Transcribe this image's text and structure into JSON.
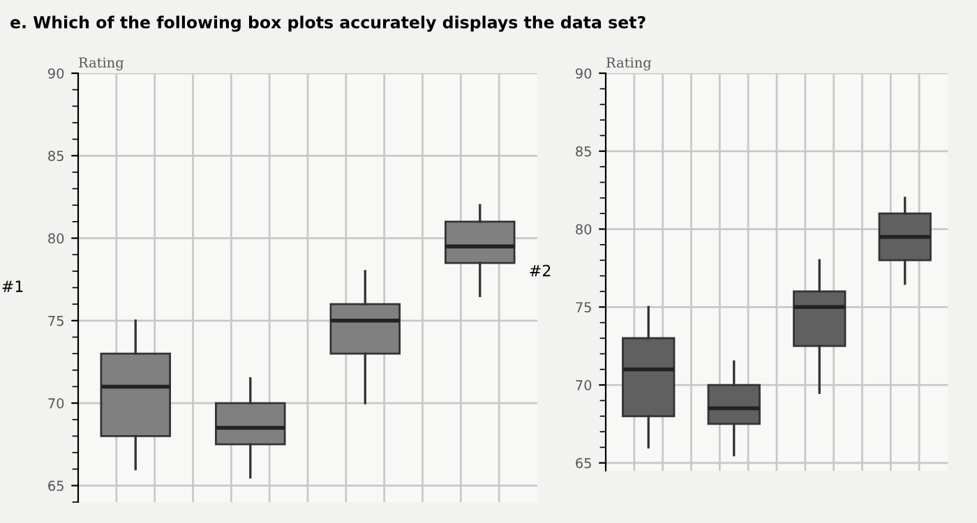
{
  "chart_data": [
    {
      "type": "box",
      "title": "Rating",
      "ylabel": "#1",
      "annotations": [
        "e. Which of the following box plots accurately displays the data set?"
      ],
      "categories": [
        null,
        null,
        null,
        null
      ],
      "color": "#808080",
      "ylim": [
        64,
        90
      ],
      "yticks": [
        65,
        70,
        75,
        80,
        85,
        90
      ],
      "grid": true,
      "tick_labels": "y",
      "boxes": [
        {
          "low": 66,
          "q1": 68,
          "median": 71,
          "q3": 73,
          "high": 75
        },
        {
          "low": 65.5,
          "q1": 67.5,
          "median": 68.5,
          "q3": 70,
          "high": 71.5
        },
        {
          "low": 70,
          "q1": 73,
          "median": 75,
          "q3": 76,
          "high": 78
        },
        {
          "low": 76.5,
          "q1": 78.5,
          "median": 79.5,
          "q3": 81,
          "high": 82
        }
      ]
    },
    {
      "type": "box",
      "title": "Rating",
      "ylabel": "#2",
      "categories": [
        null,
        null,
        null,
        null
      ],
      "color": "#606060",
      "ylim": [
        64.5,
        90
      ],
      "yticks": [
        65,
        70,
        75,
        80,
        85,
        90
      ],
      "grid": true,
      "tick_labels": "y",
      "boxes": [
        {
          "low": 66,
          "q1": 68,
          "median": 71,
          "q3": 73,
          "high": 75
        },
        {
          "low": 65.5,
          "q1": 67.5,
          "median": 68.5,
          "q3": 70,
          "high": 71.5
        },
        {
          "low": 69.5,
          "q1": 72.5,
          "median": 75,
          "q3": 76,
          "high": 78
        },
        {
          "low": 76.5,
          "q1": 78,
          "median": 79.5,
          "q3": 81,
          "high": 82
        }
      ]
    }
  ]
}
